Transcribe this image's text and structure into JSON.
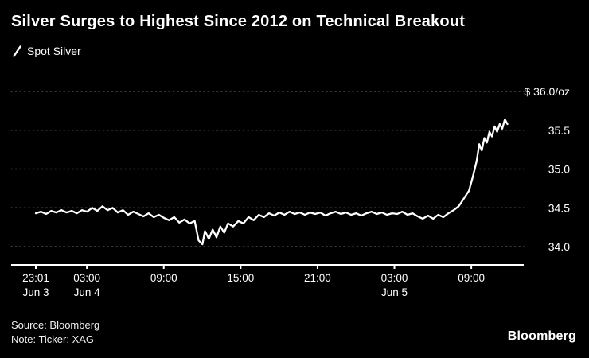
{
  "header": {
    "title": "Silver Surges to Highest Since 2012 on Technical Breakout"
  },
  "legend": {
    "label": "Spot Silver"
  },
  "footer": {
    "source": "Source: Bloomberg",
    "note": "Note: Ticker: XAG",
    "logo": "Bloomberg"
  },
  "colors": {
    "background": "#000000",
    "line": "#ffffff",
    "grid": "#4a4a4a",
    "text": "#ffffff"
  },
  "chart_data": {
    "type": "line",
    "title": "Silver Surges to Highest Since 2012 on Technical Breakout",
    "ylabel": "",
    "xlabel": "",
    "ylim": [
      34.0,
      36.0
    ],
    "grid": "dotted-horizontal",
    "legend_position": "top-left",
    "x_unit": "hours from 23:01 Jun 3",
    "yticks": [
      {
        "value": 36.0,
        "label": "$ 36.0/oz"
      },
      {
        "value": 35.5,
        "label": "35.5"
      },
      {
        "value": 35.0,
        "label": "35.0"
      },
      {
        "value": 34.5,
        "label": "34.5"
      },
      {
        "value": 34.0,
        "label": "34.0"
      }
    ],
    "xticks": [
      {
        "t": 0,
        "time": "23:01",
        "date": "Jun 3"
      },
      {
        "t": 3.983,
        "time": "03:00",
        "date": "Jun 4"
      },
      {
        "t": 9.983,
        "time": "09:00",
        "date": ""
      },
      {
        "t": 15.983,
        "time": "15:00",
        "date": ""
      },
      {
        "t": 21.983,
        "time": "21:00",
        "date": ""
      },
      {
        "t": 27.983,
        "time": "03:00",
        "date": "Jun 5"
      },
      {
        "t": 33.983,
        "time": "09:00",
        "date": ""
      }
    ],
    "series": [
      {
        "name": "Spot Silver",
        "points": [
          [
            0.0,
            34.43
          ],
          [
            0.4,
            34.45
          ],
          [
            0.8,
            34.42
          ],
          [
            1.2,
            34.46
          ],
          [
            1.6,
            34.44
          ],
          [
            2.0,
            34.47
          ],
          [
            2.4,
            34.44
          ],
          [
            2.8,
            34.46
          ],
          [
            3.2,
            34.43
          ],
          [
            3.6,
            34.47
          ],
          [
            4.0,
            34.45
          ],
          [
            4.4,
            34.5
          ],
          [
            4.8,
            34.46
          ],
          [
            5.2,
            34.52
          ],
          [
            5.6,
            34.47
          ],
          [
            6.0,
            34.5
          ],
          [
            6.4,
            34.44
          ],
          [
            6.8,
            34.47
          ],
          [
            7.2,
            34.41
          ],
          [
            7.6,
            34.45
          ],
          [
            8.0,
            34.42
          ],
          [
            8.4,
            34.39
          ],
          [
            8.8,
            34.43
          ],
          [
            9.2,
            34.38
          ],
          [
            9.6,
            34.41
          ],
          [
            10.0,
            34.37
          ],
          [
            10.4,
            34.34
          ],
          [
            10.8,
            34.38
          ],
          [
            11.2,
            34.31
          ],
          [
            11.6,
            34.35
          ],
          [
            12.0,
            34.3
          ],
          [
            12.4,
            34.33
          ],
          [
            12.7,
            34.08
          ],
          [
            13.0,
            34.03
          ],
          [
            13.2,
            34.2
          ],
          [
            13.5,
            34.1
          ],
          [
            13.8,
            34.22
          ],
          [
            14.1,
            34.12
          ],
          [
            14.4,
            34.26
          ],
          [
            14.7,
            34.18
          ],
          [
            15.0,
            34.3
          ],
          [
            15.4,
            34.26
          ],
          [
            15.8,
            34.33
          ],
          [
            16.2,
            34.3
          ],
          [
            16.6,
            34.38
          ],
          [
            17.0,
            34.34
          ],
          [
            17.4,
            34.41
          ],
          [
            17.8,
            34.38
          ],
          [
            18.2,
            34.43
          ],
          [
            18.6,
            34.4
          ],
          [
            19.0,
            34.44
          ],
          [
            19.4,
            34.41
          ],
          [
            19.8,
            34.45
          ],
          [
            20.2,
            34.42
          ],
          [
            20.6,
            34.44
          ],
          [
            21.0,
            34.41
          ],
          [
            21.4,
            34.44
          ],
          [
            21.8,
            34.42
          ],
          [
            22.2,
            34.44
          ],
          [
            22.6,
            34.4
          ],
          [
            23.0,
            34.43
          ],
          [
            23.4,
            34.45
          ],
          [
            23.8,
            34.42
          ],
          [
            24.2,
            34.44
          ],
          [
            24.6,
            34.41
          ],
          [
            25.0,
            34.43
          ],
          [
            25.4,
            34.4
          ],
          [
            25.8,
            34.43
          ],
          [
            26.2,
            34.45
          ],
          [
            26.6,
            34.42
          ],
          [
            27.0,
            34.44
          ],
          [
            27.4,
            34.41
          ],
          [
            27.8,
            34.43
          ],
          [
            28.2,
            34.42
          ],
          [
            28.6,
            34.45
          ],
          [
            29.0,
            34.41
          ],
          [
            29.4,
            34.43
          ],
          [
            29.8,
            34.39
          ],
          [
            30.2,
            34.36
          ],
          [
            30.6,
            34.4
          ],
          [
            31.0,
            34.36
          ],
          [
            31.4,
            34.41
          ],
          [
            31.8,
            34.38
          ],
          [
            32.2,
            34.43
          ],
          [
            32.6,
            34.47
          ],
          [
            33.0,
            34.52
          ],
          [
            33.4,
            34.62
          ],
          [
            33.8,
            34.72
          ],
          [
            34.1,
            34.9
          ],
          [
            34.4,
            35.1
          ],
          [
            34.6,
            35.32
          ],
          [
            34.8,
            35.24
          ],
          [
            35.0,
            35.4
          ],
          [
            35.2,
            35.34
          ],
          [
            35.4,
            35.48
          ],
          [
            35.6,
            35.42
          ],
          [
            35.8,
            35.55
          ],
          [
            36.0,
            35.48
          ],
          [
            36.2,
            35.58
          ],
          [
            36.4,
            35.52
          ],
          [
            36.6,
            35.64
          ],
          [
            36.8,
            35.58
          ]
        ]
      }
    ]
  }
}
